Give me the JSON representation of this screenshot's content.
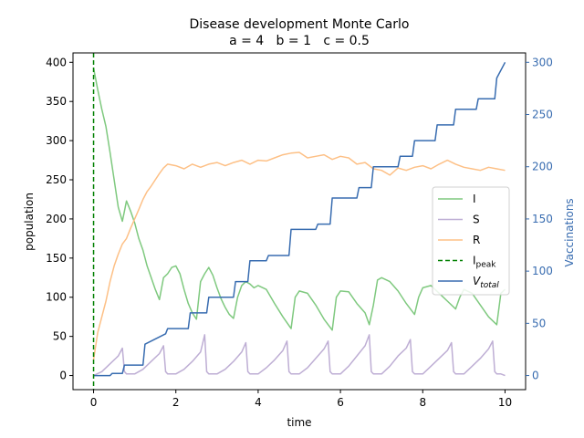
{
  "chart_data": {
    "type": "line",
    "title": "Disease development Monte Carlo",
    "subtitle": "a = 4   b = 1   c = 0.5",
    "xlabel": "time",
    "ylabel": "population",
    "y2label": "Vaccinations",
    "xlim": [
      -0.5,
      10.5
    ],
    "ylim": [
      -18,
      412
    ],
    "y2lim": [
      -13.5,
      309
    ],
    "xticks": [
      0,
      2,
      4,
      6,
      8,
      10
    ],
    "yticks": [
      0,
      50,
      100,
      150,
      200,
      250,
      300,
      350,
      400
    ],
    "y2ticks": [
      0,
      50,
      100,
      150,
      200,
      250,
      300
    ],
    "grid": false,
    "legend_position": "center-right",
    "colors": {
      "I": "#7fc97f",
      "S": "#beaed4",
      "R": "#fdc086",
      "I_peak": "#008000",
      "V_total": "#386cb0",
      "right_axis": "#386cb0"
    },
    "legend": [
      {
        "key": "I",
        "label": "I",
        "sub": ""
      },
      {
        "key": "S",
        "label": "S",
        "sub": ""
      },
      {
        "key": "R",
        "label": "R",
        "sub": ""
      },
      {
        "key": "I_peak",
        "label": "I",
        "sub": "peak"
      },
      {
        "key": "V_total",
        "label": "V",
        "sub": "total"
      }
    ],
    "I_peak_x": 0.0,
    "series": [
      {
        "name": "I",
        "axis": "left",
        "x": [
          0,
          0.1,
          0.2,
          0.3,
          0.4,
          0.5,
          0.6,
          0.7,
          0.75,
          0.8,
          0.9,
          1.0,
          1.1,
          1.2,
          1.3,
          1.4,
          1.5,
          1.6,
          1.7,
          1.8,
          1.9,
          2.0,
          2.1,
          2.2,
          2.3,
          2.4,
          2.5,
          2.6,
          2.7,
          2.8,
          2.9,
          3.0,
          3.1,
          3.2,
          3.3,
          3.4,
          3.5,
          3.6,
          3.7,
          3.8,
          3.9,
          4.0,
          4.2,
          4.4,
          4.6,
          4.8,
          4.9,
          5.0,
          5.2,
          5.4,
          5.6,
          5.8,
          5.9,
          6.0,
          6.2,
          6.4,
          6.6,
          6.7,
          6.8,
          6.9,
          7.0,
          7.2,
          7.4,
          7.6,
          7.8,
          7.9,
          8.0,
          8.2,
          8.4,
          8.6,
          8.8,
          8.9,
          9.0,
          9.2,
          9.4,
          9.6,
          9.8,
          9.9,
          10.0
        ],
        "values": [
          393,
          365,
          340,
          318,
          285,
          250,
          215,
          197,
          210,
          223,
          210,
          195,
          175,
          160,
          140,
          125,
          110,
          97,
          125,
          130,
          138,
          140,
          130,
          110,
          92,
          80,
          72,
          120,
          130,
          138,
          128,
          112,
          98,
          87,
          78,
          73,
          100,
          115,
          120,
          117,
          112,
          115,
          110,
          92,
          75,
          60,
          100,
          108,
          105,
          90,
          72,
          58,
          100,
          108,
          107,
          92,
          80,
          65,
          90,
          122,
          125,
          120,
          108,
          92,
          78,
          100,
          112,
          115,
          105,
          95,
          85,
          100,
          110,
          105,
          90,
          75,
          65,
          105,
          110
        ]
      },
      {
        "name": "S",
        "axis": "left",
        "x": [
          0,
          0.2,
          0.4,
          0.6,
          0.7,
          0.75,
          0.8,
          0.9,
          1.0,
          1.2,
          1.4,
          1.6,
          1.7,
          1.75,
          1.8,
          1.9,
          2.0,
          2.2,
          2.4,
          2.6,
          2.7,
          2.75,
          2.8,
          2.9,
          3.0,
          3.2,
          3.4,
          3.6,
          3.7,
          3.75,
          3.8,
          3.9,
          4.0,
          4.2,
          4.4,
          4.6,
          4.7,
          4.75,
          4.8,
          4.9,
          5.0,
          5.2,
          5.4,
          5.6,
          5.7,
          5.75,
          5.8,
          5.9,
          6.0,
          6.2,
          6.4,
          6.6,
          6.7,
          6.75,
          6.8,
          6.9,
          7.0,
          7.2,
          7.4,
          7.6,
          7.7,
          7.75,
          7.8,
          7.9,
          8.0,
          8.2,
          8.4,
          8.6,
          8.7,
          8.75,
          8.8,
          8.9,
          9.0,
          9.2,
          9.4,
          9.6,
          9.7,
          9.75,
          9.8,
          9.9,
          10.0
        ],
        "values": [
          0,
          5,
          15,
          25,
          35,
          5,
          2,
          2,
          2,
          8,
          18,
          28,
          38,
          5,
          2,
          2,
          2,
          8,
          18,
          30,
          52,
          5,
          2,
          2,
          2,
          8,
          18,
          30,
          42,
          5,
          2,
          2,
          2,
          10,
          20,
          32,
          44,
          5,
          2,
          2,
          2,
          10,
          22,
          34,
          44,
          5,
          2,
          2,
          2,
          12,
          25,
          38,
          52,
          5,
          2,
          2,
          2,
          12,
          25,
          35,
          46,
          5,
          2,
          2,
          2,
          12,
          22,
          32,
          42,
          5,
          2,
          2,
          2,
          12,
          22,
          34,
          44,
          5,
          2,
          2,
          0
        ]
      },
      {
        "name": "R",
        "axis": "left",
        "x": [
          0,
          0.1,
          0.2,
          0.3,
          0.4,
          0.5,
          0.6,
          0.7,
          0.8,
          0.9,
          1.0,
          1.1,
          1.2,
          1.3,
          1.4,
          1.5,
          1.6,
          1.7,
          1.8,
          2.0,
          2.2,
          2.4,
          2.6,
          2.8,
          3.0,
          3.2,
          3.4,
          3.6,
          3.8,
          4.0,
          4.2,
          4.4,
          4.6,
          4.8,
          5.0,
          5.2,
          5.4,
          5.6,
          5.8,
          6.0,
          6.2,
          6.4,
          6.6,
          6.8,
          7.0,
          7.2,
          7.4,
          7.6,
          7.8,
          8.0,
          8.2,
          8.4,
          8.6,
          8.8,
          9.0,
          9.2,
          9.4,
          9.6,
          9.8,
          10.0
        ],
        "values": [
          20,
          55,
          75,
          95,
          120,
          140,
          155,
          168,
          175,
          188,
          200,
          212,
          225,
          235,
          242,
          250,
          258,
          265,
          270,
          268,
          264,
          270,
          266,
          270,
          272,
          268,
          272,
          275,
          270,
          275,
          274,
          278,
          282,
          284,
          285,
          278,
          280,
          282,
          276,
          280,
          278,
          270,
          272,
          264,
          262,
          256,
          265,
          262,
          266,
          268,
          264,
          270,
          275,
          270,
          266,
          264,
          262,
          266,
          264,
          262
        ]
      },
      {
        "name": "V_total",
        "axis": "right",
        "x": [
          0,
          0.4,
          0.45,
          0.7,
          0.75,
          1.2,
          1.25,
          1.75,
          1.8,
          2.3,
          2.35,
          2.75,
          2.8,
          3.4,
          3.45,
          3.75,
          3.8,
          4.2,
          4.25,
          4.75,
          4.8,
          5.4,
          5.45,
          5.75,
          5.8,
          6.4,
          6.45,
          6.75,
          6.8,
          7.4,
          7.45,
          7.75,
          7.8,
          8.3,
          8.35,
          8.75,
          8.8,
          9.3,
          9.35,
          9.75,
          9.8,
          10.0
        ],
        "values": [
          0,
          0,
          2,
          2,
          10,
          10,
          30,
          40,
          45,
          45,
          60,
          60,
          75,
          75,
          90,
          90,
          110,
          110,
          115,
          115,
          140,
          140,
          145,
          145,
          170,
          170,
          180,
          180,
          200,
          200,
          210,
          210,
          225,
          225,
          240,
          240,
          255,
          255,
          265,
          265,
          285,
          300
        ]
      }
    ]
  }
}
